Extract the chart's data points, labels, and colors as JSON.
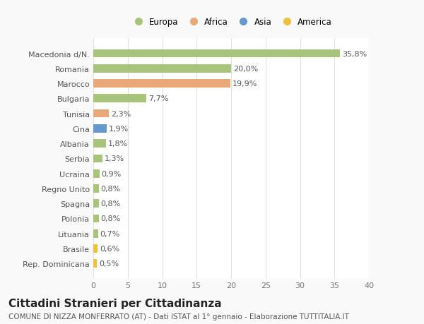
{
  "categories": [
    "Rep. Dominicana",
    "Brasile",
    "Lituania",
    "Polonia",
    "Spagna",
    "Regno Unito",
    "Ucraina",
    "Serbia",
    "Albania",
    "Cina",
    "Tunisia",
    "Bulgaria",
    "Marocco",
    "Romania",
    "Macedonia d/N."
  ],
  "values": [
    0.5,
    0.6,
    0.7,
    0.8,
    0.8,
    0.8,
    0.9,
    1.3,
    1.8,
    1.9,
    2.3,
    7.7,
    19.9,
    20.0,
    35.8
  ],
  "labels": [
    "0,5%",
    "0,6%",
    "0,7%",
    "0,8%",
    "0,8%",
    "0,8%",
    "0,9%",
    "1,3%",
    "1,8%",
    "1,9%",
    "2,3%",
    "7,7%",
    "19,9%",
    "20,0%",
    "35,8%"
  ],
  "colors": [
    "#f0c040",
    "#f0c040",
    "#a8c47a",
    "#a8c47a",
    "#a8c47a",
    "#a8c47a",
    "#a8c47a",
    "#a8c47a",
    "#a8c47a",
    "#6699cc",
    "#e8a878",
    "#a8c47a",
    "#e8a878",
    "#a8c47a",
    "#a8c47a"
  ],
  "legend_labels": [
    "Europa",
    "Africa",
    "Asia",
    "America"
  ],
  "legend_colors": [
    "#a8c47a",
    "#e8a878",
    "#6699cc",
    "#f0c040"
  ],
  "title": "Cittadini Stranieri per Cittadinanza",
  "subtitle": "COMUNE DI NIZZA MONFERRATO (AT) - Dati ISTAT al 1° gennaio - Elaborazione TUTTITALIA.IT",
  "xlim": [
    0,
    40
  ],
  "xticks": [
    0,
    5,
    10,
    15,
    20,
    25,
    30,
    35,
    40
  ],
  "background_color": "#f9f9f9",
  "plot_background": "#ffffff",
  "grid_color": "#e0e0e0",
  "bar_height": 0.55,
  "title_fontsize": 11,
  "subtitle_fontsize": 7.5,
  "label_fontsize": 8,
  "tick_fontsize": 8,
  "legend_fontsize": 8.5
}
